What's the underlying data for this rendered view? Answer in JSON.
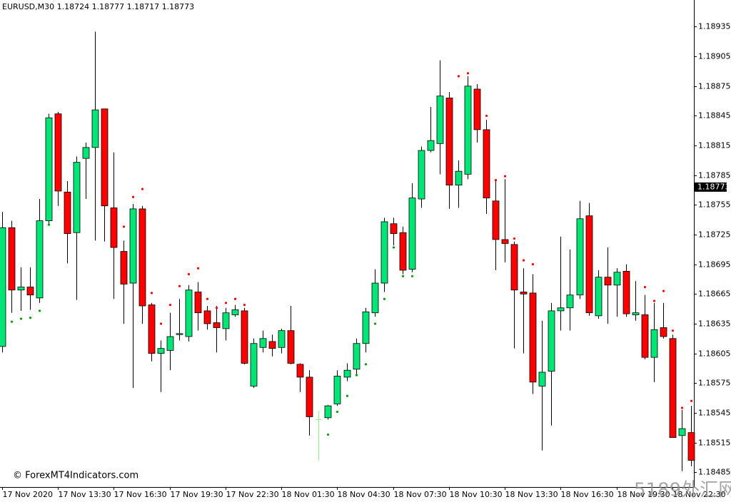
{
  "chart_data": {
    "type": "candlestick",
    "title": "EURUSD,M30",
    "header_ohlc": [
      1.18724,
      1.18777,
      1.18717,
      1.18773
    ],
    "current_price": 1.18773,
    "copyright": "© ForexMT4Indicators.com",
    "watermark": "5189外汇网",
    "up_color": "#00e676",
    "down_color": "#ff0000",
    "doji_color": "#90ee90",
    "categories": [
      "17 Nov 2020",
      null,
      null,
      null,
      null,
      null,
      "17 Nov 13:30",
      null,
      null,
      null,
      null,
      null,
      "17 Nov 16:30",
      null,
      null,
      null,
      null,
      null,
      "17 Nov 19:30",
      null,
      null,
      null,
      null,
      null,
      "17 Nov 22:30",
      null,
      null,
      null,
      null,
      null,
      "18 Nov 01:30",
      null,
      null,
      null,
      null,
      null,
      "18 Nov 04:30",
      null,
      null,
      null,
      null,
      null,
      "18 Nov 07:30",
      null,
      null,
      null,
      null,
      null,
      "18 Nov 10:30",
      null,
      null,
      null,
      null,
      null,
      "18 Nov 13:30",
      null,
      null,
      null,
      null,
      null,
      "18 Nov 16:30",
      null,
      null,
      null,
      null,
      null,
      "18 Nov 19:30",
      null,
      null,
      null,
      null,
      null,
      "18 Nov 22:30",
      null,
      null
    ],
    "open": [
      1.18612,
      1.18732,
      1.18669,
      1.18672,
      1.18661,
      1.18739,
      1.18847,
      1.18768,
      1.18727,
      1.18802,
      1.18813,
      1.18852,
      1.18752,
      1.18708,
      1.18676,
      1.18751,
      1.18654,
      1.18605,
      1.18608,
      1.18624,
      1.18622,
      1.18667,
      1.18648,
      1.18636,
      1.1863,
      1.18644,
      1.18648,
      1.18572,
      1.18611,
      1.18617,
      1.18611,
      1.18628,
      1.18594,
      1.18581,
      1.18538,
      1.1854,
      1.18554,
      1.18581,
      1.18589,
      1.18615,
      1.18646,
      1.18676,
      1.18736,
      1.18727,
      1.1869,
      1.18761,
      1.1881,
      1.18817,
      1.18863,
      1.18775,
      1.18786,
      1.18872,
      1.18831,
      1.18759,
      1.1872,
      1.18715,
      1.18667,
      1.18666,
      1.18572,
      1.18587,
      1.18648,
      1.18651,
      1.18664,
      1.18744,
      1.18643,
      1.18682,
      1.18674,
      1.18688,
      1.18644,
      1.18644,
      1.18601,
      1.18631,
      1.1862,
      1.18522,
      1.18525
    ],
    "high": [
      1.18748,
      1.18739,
      1.18692,
      1.18692,
      1.18761,
      1.18847,
      1.18849,
      1.18779,
      1.18804,
      1.18818,
      1.1893,
      1.18852,
      1.18808,
      1.18719,
      1.18756,
      1.18754,
      1.18656,
      1.18618,
      1.18646,
      1.1866,
      1.18674,
      1.18677,
      1.18653,
      1.18653,
      1.18651,
      1.18654,
      1.18651,
      1.1862,
      1.18628,
      1.18624,
      1.1863,
      1.18653,
      1.18595,
      1.18588,
      1.18547,
      1.18553,
      1.18588,
      1.18595,
      1.1862,
      1.18651,
      1.1869,
      1.18742,
      1.18742,
      1.18733,
      1.18777,
      1.18814,
      1.18854,
      1.18901,
      1.18869,
      1.188,
      1.18885,
      1.18877,
      1.18841,
      1.18779,
      1.18781,
      1.18718,
      1.18691,
      1.18685,
      1.18638,
      1.18656,
      1.18723,
      1.1871,
      1.18759,
      1.18757,
      1.18689,
      1.18712,
      1.18691,
      1.18695,
      1.18678,
      1.18664,
      1.18656,
      1.18656,
      1.18624,
      1.18548,
      1.18552
    ],
    "low": [
      1.18606,
      1.18646,
      1.18648,
      1.18649,
      1.18656,
      1.18736,
      1.18754,
      1.18696,
      1.18659,
      1.18761,
      1.18719,
      1.18718,
      1.1866,
      1.18635,
      1.1857,
      1.18635,
      1.18597,
      1.18566,
      1.18588,
      1.18618,
      1.18617,
      1.18628,
      1.18629,
      1.18606,
      1.18618,
      1.18642,
      1.18594,
      1.1857,
      1.18606,
      1.18602,
      1.18605,
      1.18594,
      1.18566,
      1.18522,
      1.18497,
      1.18538,
      1.18552,
      1.18577,
      1.18584,
      1.18606,
      1.18642,
      1.18667,
      1.18714,
      1.18685,
      1.18687,
      1.18752,
      1.18808,
      1.18786,
      1.18751,
      1.18752,
      1.18781,
      1.18818,
      1.18746,
      1.18689,
      1.18697,
      1.1861,
      1.18605,
      1.18564,
      1.18507,
      1.18532,
      1.18628,
      1.18628,
      1.1866,
      1.18643,
      1.1864,
      1.18635,
      1.18642,
      1.18642,
      1.18638,
      1.18599,
      1.18576,
      1.1862,
      1.1852,
      1.18486,
      1.18491
    ],
    "close": [
      1.18732,
      1.18669,
      1.18672,
      1.18664,
      1.18739,
      1.18843,
      1.18769,
      1.18726,
      1.18798,
      1.18813,
      1.18851,
      1.18754,
      1.18712,
      1.18675,
      1.18751,
      1.18653,
      1.18605,
      1.1861,
      1.18622,
      1.18625,
      1.18669,
      1.18646,
      1.18635,
      1.18631,
      1.18646,
      1.18649,
      1.18595,
      1.18615,
      1.1862,
      1.1861,
      1.18628,
      1.18595,
      1.18581,
      1.18541,
      1.18538,
      1.18552,
      1.18582,
      1.18588,
      1.18615,
      1.18647,
      1.18676,
      1.18738,
      1.18726,
      1.18689,
      1.18762,
      1.1881,
      1.1882,
      1.18865,
      1.18775,
      1.18789,
      1.18875,
      1.18831,
      1.18762,
      1.1872,
      1.18716,
      1.18669,
      1.18665,
      1.18576,
      1.18586,
      1.18648,
      1.18651,
      1.18664,
      1.18741,
      1.18646,
      1.18682,
      1.18674,
      1.18687,
      1.18645,
      1.18646,
      1.18601,
      1.18629,
      1.18622,
      1.1852,
      1.18529,
      1.18497
    ],
    "buy_signals": {
      "color": "#00a000",
      "values": [
        null,
        1.18637,
        1.1864,
        1.18641,
        1.18648,
        1.18735,
        null,
        null,
        null,
        null,
        null,
        null,
        null,
        null,
        null,
        null,
        null,
        null,
        null,
        null,
        null,
        null,
        null,
        null,
        null,
        null,
        null,
        null,
        null,
        null,
        null,
        null,
        null,
        null,
        null,
        1.18523,
        1.18546,
        1.18562,
        1.18583,
        1.18594,
        1.18635,
        1.1866,
        1.18712,
        1.18683,
        1.18683,
        null,
        null,
        null,
        null,
        null,
        null,
        null,
        null,
        null,
        null,
        null,
        null,
        null,
        null,
        null,
        null,
        null,
        null,
        null,
        null,
        null,
        null,
        null,
        null,
        null,
        null,
        null,
        null,
        null,
        null
      ]
    },
    "sell_signals": {
      "color": "#ff0000",
      "values": [
        null,
        null,
        null,
        null,
        null,
        null,
        null,
        null,
        null,
        null,
        null,
        null,
        null,
        1.18733,
        1.18763,
        1.18771,
        1.18666,
        1.18635,
        1.18654,
        1.18673,
        1.18685,
        1.18691,
        1.1866,
        1.18651,
        1.18656,
        1.1866,
        1.18654,
        null,
        null,
        null,
        null,
        null,
        null,
        null,
        null,
        null,
        null,
        null,
        null,
        null,
        null,
        null,
        null,
        null,
        null,
        null,
        null,
        null,
        null,
        1.18885,
        1.18888,
        null,
        1.18845,
        1.1878,
        1.18784,
        1.18721,
        1.18699,
        1.18695,
        null,
        null,
        null,
        null,
        null,
        null,
        null,
        null,
        null,
        null,
        null,
        1.18672,
        1.18658,
        1.18668,
        1.18628,
        1.1855,
        1.18557
      ]
    },
    "ylim": [
      1.1847,
      1.18962
    ],
    "yticks": [
      1.18935,
      1.18905,
      1.18875,
      1.18845,
      1.18815,
      1.18785,
      1.18755,
      1.18725,
      1.18695,
      1.18665,
      1.18635,
      1.18605,
      1.18575,
      1.18545,
      1.18515,
      1.18485
    ]
  }
}
